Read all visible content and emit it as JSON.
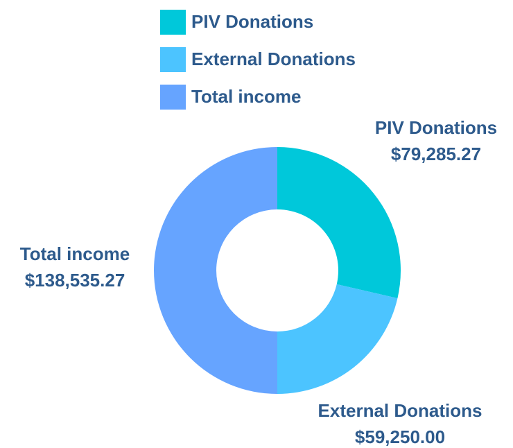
{
  "chart_data": {
    "type": "donut",
    "categories": [
      "PIV Donations",
      "External Donations",
      "Total income"
    ],
    "values": [
      79285.27,
      59250.0,
      138535.27
    ],
    "value_labels": [
      "$79,285.27",
      "$59,250.00",
      "$138,535.27"
    ],
    "colors": [
      "#00c8da",
      "#4cc4ff",
      "#66a4ff"
    ],
    "legend": "top"
  }
}
